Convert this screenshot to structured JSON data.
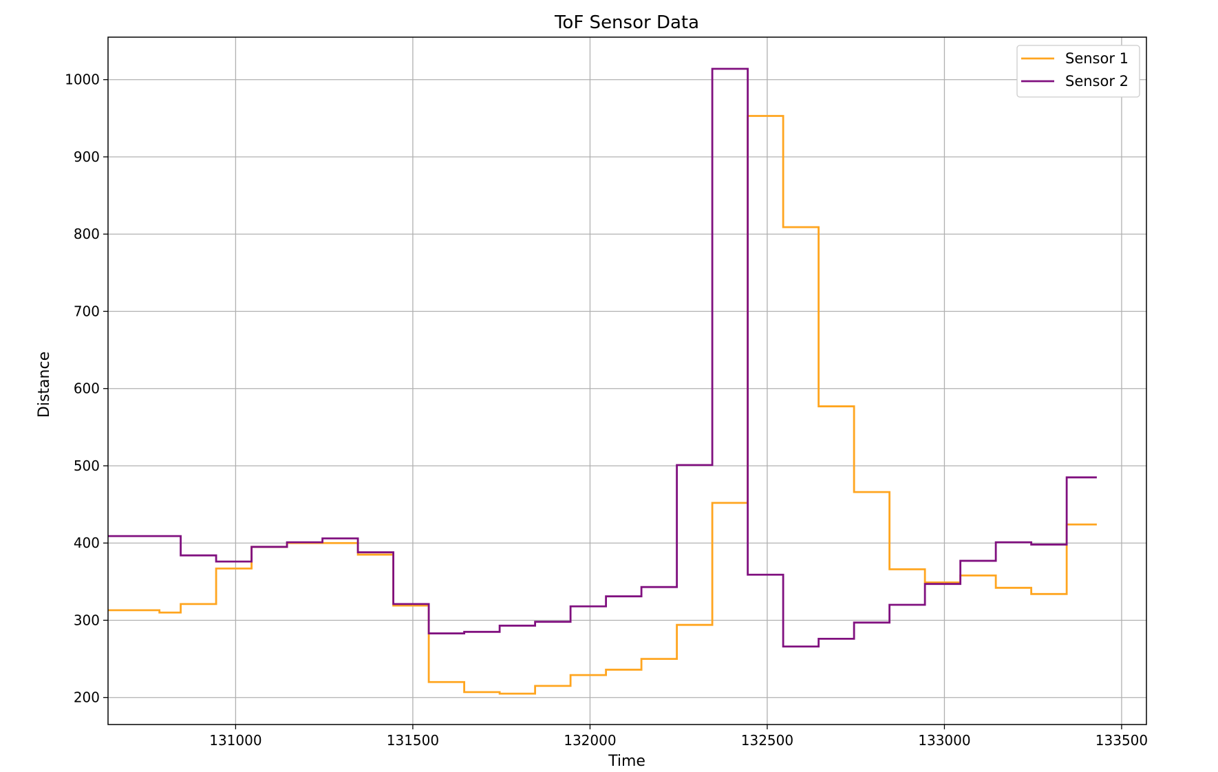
{
  "chart_data": {
    "type": "line",
    "title": "ToF Sensor Data",
    "xlabel": "Time",
    "ylabel": "Distance",
    "xlim": [
      130640,
      133570
    ],
    "ylim": [
      165,
      1055
    ],
    "xticks": [
      131000,
      131500,
      132000,
      132500,
      133000,
      133500
    ],
    "yticks": [
      200,
      300,
      400,
      500,
      600,
      700,
      800,
      900,
      1000
    ],
    "grid": true,
    "legend_position": "top-right",
    "series": [
      {
        "name": "Sensor 1",
        "color": "#ffa51f",
        "x": [
          130785,
          130785,
          130845,
          130845,
          130945,
          130945,
          131045,
          131045,
          131145,
          131145,
          131345,
          131345,
          131445,
          131445,
          131545,
          131545,
          131645,
          131645,
          131745,
          131745,
          131845,
          131845,
          131945,
          131945,
          132045,
          132045,
          132145,
          132145,
          132245,
          132245,
          132345,
          132345,
          132445,
          132445,
          132545,
          132545,
          132645,
          132645,
          132745,
          132745,
          132845,
          132845,
          132945,
          132945,
          133045,
          133045,
          133145,
          133145,
          133245,
          133245,
          133345,
          133345,
          133430
        ],
        "y": [
          313,
          310,
          310,
          321,
          321,
          367,
          367,
          395,
          395,
          400,
          400,
          385,
          385,
          319,
          319,
          220,
          220,
          207,
          207,
          205,
          205,
          215,
          215,
          229,
          229,
          236,
          236,
          250,
          250,
          294,
          294,
          452,
          452,
          953,
          953,
          809,
          809,
          577,
          577,
          466,
          466,
          366,
          366,
          349,
          349,
          358,
          358,
          342,
          342,
          334,
          334,
          424,
          424
        ],
        "x_start": 130640,
        "y_start": 313
      },
      {
        "name": "Sensor 2",
        "color": "#80107f",
        "x": [
          130845,
          130845,
          130945,
          130945,
          131045,
          131045,
          131145,
          131145,
          131245,
          131245,
          131345,
          131345,
          131445,
          131445,
          131545,
          131545,
          131645,
          131645,
          131745,
          131745,
          131845,
          131845,
          131945,
          131945,
          132045,
          132045,
          132145,
          132145,
          132245,
          132245,
          132345,
          132345,
          132445,
          132445,
          132545,
          132545,
          132645,
          132645,
          132745,
          132745,
          132845,
          132845,
          132945,
          132945,
          133045,
          133045,
          133145,
          133145,
          133245,
          133245,
          133345,
          133345,
          133430
        ],
        "y": [
          409,
          384,
          384,
          376,
          376,
          395,
          395,
          401,
          401,
          406,
          406,
          388,
          388,
          321,
          321,
          283,
          283,
          285,
          285,
          293,
          293,
          298,
          298,
          318,
          318,
          331,
          331,
          343,
          343,
          501,
          501,
          1014,
          1014,
          359,
          359,
          266,
          266,
          276,
          276,
          297,
          297,
          320,
          320,
          347,
          347,
          377,
          377,
          401,
          401,
          398,
          398,
          485,
          485
        ],
        "x_start": 130640,
        "y_start": 409
      }
    ]
  }
}
